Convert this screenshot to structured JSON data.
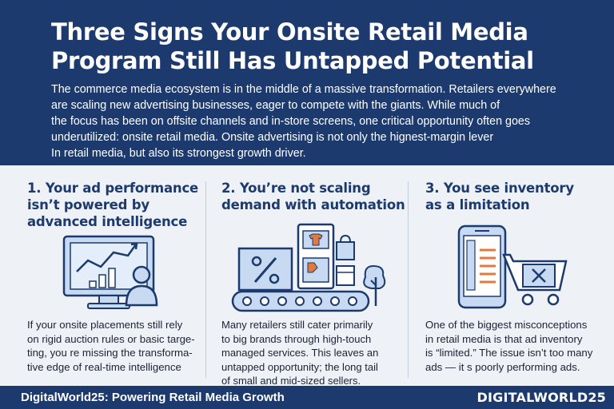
{
  "header": {
    "title_lines": [
      "Three Signs Your Onsite Retail Media",
      "Program Still Has Untapped Potential"
    ],
    "intro_lines": [
      "The commerce media ecosystem is in the middle of a massive transformation. Retailers everywhere",
      "are scaling new advertising businesses, eager to compete with the giants. While much of",
      "the focus has been on offsite channels and in-store screens, one critical opportunity often goes",
      "underutilized: onsite retail media. Onsite advertising is not only the hignest-margin lever",
      "In retail media, but also its strongest growth driver."
    ]
  },
  "columns": [
    {
      "heading_lines": [
        "1. Your ad performance",
        "isn’t powered by",
        "advanced intelligence"
      ],
      "body_lines": [
        "If your onsite placements still rely",
        "on rigid auction rules or basic targe-",
        "ting, you re missing the transforma-",
        "tive edge of real-time intelligence"
      ],
      "icon": "analytics-monitor-icon"
    },
    {
      "heading_lines": [
        "2. You’re not scaling",
        "demand with automation"
      ],
      "body_lines": [
        "Many retailers still cater primarily",
        "to big brands through high-touch",
        "managed services. This leaves an",
        "untapped opportunity; the long tail",
        "of small and mid-sized sellers."
      ],
      "icon": "automation-conveyor-icon"
    },
    {
      "heading_lines": [
        "3. You see inventory",
        "as a limitation"
      ],
      "body_lines": [
        "One of the biggest misconceptions",
        "in retail media is that ad inventory",
        "is “limited.” The issue isn’t too many",
        "ads — it s poorly performing ads."
      ],
      "icon": "mobile-cart-icon"
    }
  ],
  "footer": {
    "left": "DigitalWorld25: Powering Retail Media Growth",
    "right": "DIGITALWORLD25"
  },
  "colors": {
    "navy": "#1d3a6e",
    "light_blue": "#c7daf2",
    "orange": "#e27a3f",
    "background": "#eef1f6"
  }
}
